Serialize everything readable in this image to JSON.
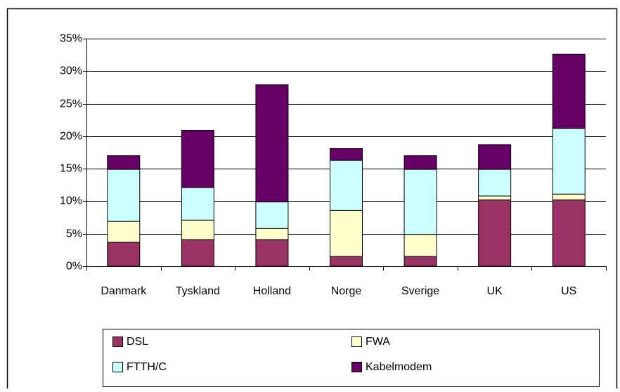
{
  "chart_data": {
    "type": "stacked_bar",
    "categories": [
      "Danmark",
      "Tyskland",
      "Holland",
      "Norge",
      "Sverige",
      "UK",
      "US"
    ],
    "series": [
      {
        "name": "DSL",
        "color": "#993366",
        "values": [
          3.7,
          4.1,
          4.1,
          1.5,
          1.5,
          10.2,
          10.2
        ]
      },
      {
        "name": "FWA",
        "color": "#ffffcc",
        "values": [
          3.2,
          3.0,
          1.7,
          7.1,
          3.4,
          0.6,
          0.9
        ]
      },
      {
        "name": "FTTH/C",
        "color": "#ccffff",
        "values": [
          8.0,
          5.0,
          4.1,
          7.7,
          10.0,
          4.1,
          10.1
        ]
      },
      {
        "name": "Kabelmodem",
        "color": "#660066",
        "values": [
          2.1,
          8.8,
          18.0,
          1.8,
          2.1,
          3.8,
          11.4
        ]
      }
    ],
    "ylim": [
      0,
      35
    ],
    "yticks": [
      {
        "value": 0,
        "label": "0%"
      },
      {
        "value": 5,
        "label": "5%"
      },
      {
        "value": 10,
        "label": "10%"
      },
      {
        "value": 15,
        "label": "15%"
      },
      {
        "value": 20,
        "label": "20%"
      },
      {
        "value": 25,
        "label": "25%"
      },
      {
        "value": 30,
        "label": "30%"
      },
      {
        "value": 35,
        "label": "35%"
      }
    ],
    "grid": true
  }
}
